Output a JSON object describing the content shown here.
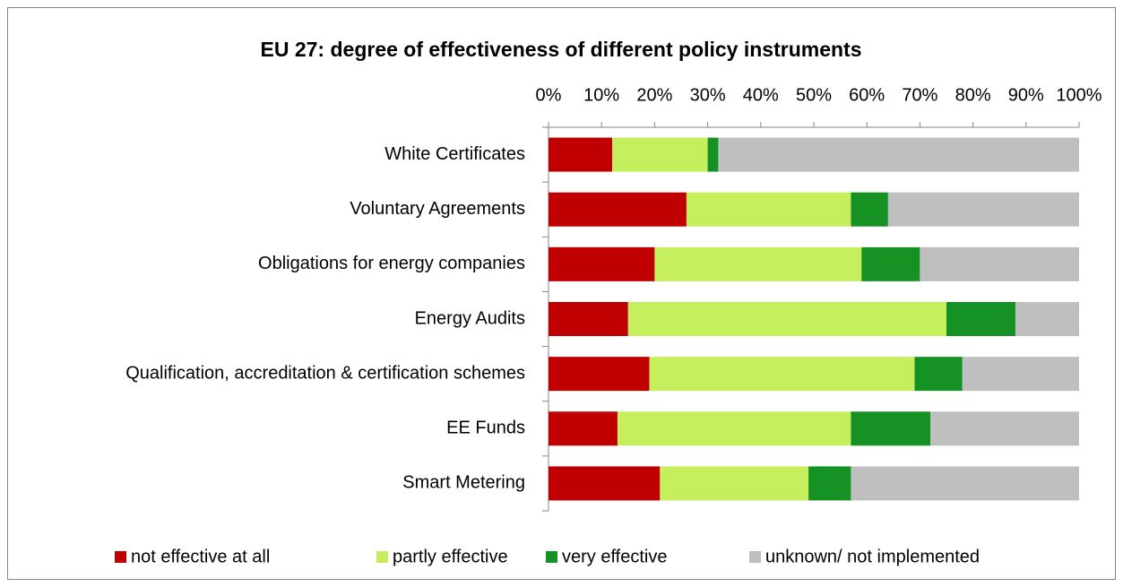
{
  "chart_data": {
    "type": "stacked_barh",
    "title": "EU 27: degree of effectiveness of different policy instruments",
    "categories": [
      "White Certificates",
      "Voluntary Agreements",
      "Obligations for energy companies",
      "Energy Audits",
      "Qualification, accreditation & certification schemes",
      "EE Funds",
      "Smart Metering"
    ],
    "series": [
      {
        "name": "not effective at all",
        "color": "#c00000",
        "values": [
          12,
          26,
          20,
          15,
          19,
          13,
          21
        ]
      },
      {
        "name": "partly effective",
        "color": "#c6ef5e",
        "values": [
          18,
          31,
          39,
          60,
          50,
          44,
          28
        ]
      },
      {
        "name": "very effective",
        "color": "#169124",
        "values": [
          2,
          7,
          11,
          13,
          9,
          15,
          8
        ]
      },
      {
        "name": "unknown/ not implemented",
        "color": "#bfbfbf",
        "values": [
          68,
          36,
          30,
          12,
          22,
          28,
          43
        ]
      }
    ],
    "xlim": [
      0,
      100
    ],
    "xticks": [
      {
        "value": 0,
        "label": "0%"
      },
      {
        "value": 10,
        "label": "10%"
      },
      {
        "value": 20,
        "label": "20%"
      },
      {
        "value": 30,
        "label": "30%"
      },
      {
        "value": 40,
        "label": "40%"
      },
      {
        "value": 50,
        "label": "50%"
      },
      {
        "value": 60,
        "label": "60%"
      },
      {
        "value": 70,
        "label": "70%"
      },
      {
        "value": 80,
        "label": "80%"
      },
      {
        "value": 90,
        "label": "90%"
      },
      {
        "value": 100,
        "label": "100%"
      }
    ],
    "grid": false,
    "legend": "bottom"
  }
}
